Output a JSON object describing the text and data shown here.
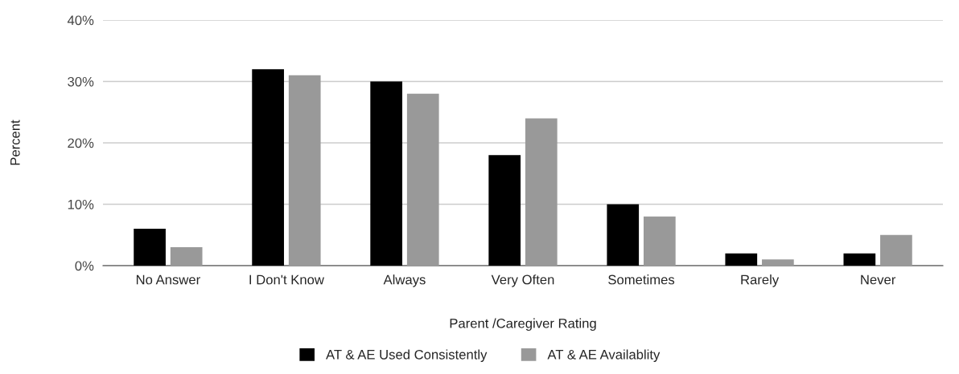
{
  "chart_data": {
    "type": "bar",
    "xlabel": "Parent /Caregiver Rating",
    "ylabel": "Percent",
    "categories": [
      "No Answer",
      "I Don't Know",
      "Always",
      "Very Often",
      "Sometimes",
      "Rarely",
      "Never"
    ],
    "series": [
      {
        "name": "AT & AE Used Consistently",
        "color": "#000000",
        "values": [
          6,
          32,
          30,
          18,
          10,
          2,
          2
        ]
      },
      {
        "name": "AT & AE Availablity",
        "color": "#999999",
        "values": [
          3,
          31,
          28,
          24,
          8,
          1,
          5
        ]
      }
    ],
    "ylim": [
      0,
      40
    ],
    "yticks": [
      {
        "value": 0,
        "label": "0%"
      },
      {
        "value": 10,
        "label": "10%"
      },
      {
        "value": 20,
        "label": "20%"
      },
      {
        "value": 30,
        "label": "30%"
      },
      {
        "value": 40,
        "label": "40%"
      }
    ],
    "grid": "y",
    "legend": "bottom"
  }
}
